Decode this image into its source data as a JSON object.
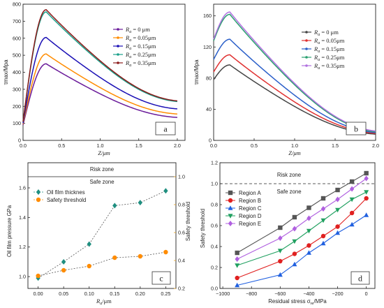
{
  "chart_data": [
    {
      "panel": "a",
      "type": "line",
      "xlabel": "Z/μm",
      "ylabel": "τmax/Mpa",
      "xlim": [
        0,
        2.1
      ],
      "ylim": [
        0,
        800
      ],
      "xticks": [
        "0.0",
        "0.5",
        "1.0",
        "1.5",
        "2.0"
      ],
      "yticks": [
        "0",
        "100",
        "200",
        "300",
        "400",
        "500",
        "600",
        "700",
        "800"
      ],
      "legend_position": "top-right",
      "panel_label": "a",
      "series": [
        {
          "name": "Ra = 0 μm",
          "color": "#6a1b9a",
          "peak_x": 0.3,
          "peak_y": 450,
          "y0": 90,
          "y_end": 135
        },
        {
          "name": "Ra = 0.05μm",
          "color": "#ff8c00",
          "peak_x": 0.3,
          "peak_y": 508,
          "y0": 95,
          "y_end": 155
        },
        {
          "name": "Ra = 0.15μm",
          "color": "#1a0fb5",
          "peak_x": 0.3,
          "peak_y": 605,
          "y0": 100,
          "y_end": 185
        },
        {
          "name": "Ra = 0.25μm",
          "color": "#1aa08a",
          "peak_x": 0.3,
          "peak_y": 755,
          "y0": 110,
          "y_end": 228
        },
        {
          "name": "Ra = 0.35μm",
          "color": "#8b1a1a",
          "peak_x": 0.3,
          "peak_y": 768,
          "y0": 110,
          "y_end": 232
        }
      ]
    },
    {
      "panel": "b",
      "type": "line",
      "xlabel": "Z/μm",
      "ylabel": "τmax/Mpa",
      "xlim": [
        0,
        2.0
      ],
      "ylim": [
        0,
        175
      ],
      "xticks": [
        "0.0",
        "0.5",
        "1.0",
        "1.5",
        "2.0"
      ],
      "yticks": [
        "0",
        "40",
        "80",
        "120",
        "160"
      ],
      "legend_position": "top-right",
      "panel_label": "b",
      "series": [
        {
          "name": "Ra = 0 μm",
          "color": "#444444",
          "peak_x": 0.2,
          "peak_y": 97,
          "y0": 78,
          "y_end": 8
        },
        {
          "name": "Ra = 0.05μm",
          "color": "#e03030",
          "peak_x": 0.2,
          "peak_y": 110,
          "y0": 88,
          "y_end": 9
        },
        {
          "name": "Ra = 0.15μm",
          "color": "#2a5fc9",
          "peak_x": 0.2,
          "peak_y": 130,
          "y0": 104,
          "y_end": 10
        },
        {
          "name": "Ra = 0.25μm",
          "color": "#2aa070",
          "peak_x": 0.2,
          "peak_y": 162,
          "y0": 128,
          "y_end": 11
        },
        {
          "name": "Ra = 0.35μm",
          "color": "#b070e0",
          "peak_x": 0.2,
          "peak_y": 165,
          "y0": 130,
          "y_end": 12
        }
      ]
    },
    {
      "panel": "c",
      "type": "line",
      "xlabel": "Ra/μm",
      "ylabel": "Oil film pressure GPa",
      "ylabel_right": "Safety threshold",
      "xlim": [
        -0.02,
        0.27
      ],
      "ylim": [
        0.92,
        1.77
      ],
      "ylim_right": [
        0.2,
        1.1
      ],
      "xticks": [
        "0.00",
        "0.05",
        "0.10",
        "0.15",
        "0.20",
        "0.25"
      ],
      "yticks": [
        "1.0",
        "1.2",
        "1.4",
        "1.6"
      ],
      "yticks_right": [
        "0.2",
        "0.4",
        "0.6",
        "0.8",
        "1.0"
      ],
      "zones": {
        "risk": "Risk zone",
        "safe": "Safe zone"
      },
      "legend_position": "top-left",
      "panel_label": "c",
      "x": [
        0.0,
        0.05,
        0.1,
        0.15,
        0.2,
        0.25
      ],
      "series": [
        {
          "name": "Oil film thicknes",
          "color": "#1f8f80",
          "marker": "diamond",
          "axis": "left",
          "values": [
            0.99,
            1.1,
            1.22,
            1.48,
            1.5,
            1.58
          ]
        },
        {
          "name": "Safety threshold",
          "color": "#ff8c00",
          "marker": "circle",
          "axis": "right",
          "values": [
            0.29,
            0.33,
            0.36,
            0.42,
            0.43,
            0.46
          ]
        }
      ]
    },
    {
      "panel": "d",
      "type": "line",
      "xlabel": "Residual stress σ_re/MPa",
      "ylabel": "Safety threshold",
      "xlim": [
        -1020,
        60
      ],
      "ylim": [
        0,
        1.2
      ],
      "xticks": [
        "-1000",
        "-800",
        "-600",
        "-400",
        "-200",
        "0"
      ],
      "yticks": [
        "0.0",
        "0.2",
        "0.4",
        "0.6",
        "0.8",
        "1.0",
        "1.2"
      ],
      "zones": {
        "risk": "Risk zone",
        "safe": "Safe zone"
      },
      "legend_position": "top-left",
      "panel_label": "d",
      "x": [
        -900,
        -600,
        -500,
        -400,
        -300,
        -200,
        -100,
        0
      ],
      "series": [
        {
          "name": "Region A",
          "color": "#555555",
          "marker": "square",
          "values": [
            0.34,
            0.58,
            0.68,
            0.77,
            0.86,
            0.94,
            1.02,
            1.1
          ]
        },
        {
          "name": "Region B",
          "color": "#e02020",
          "marker": "circle",
          "values": [
            0.1,
            0.26,
            0.33,
            0.41,
            0.5,
            0.59,
            0.72,
            0.86
          ]
        },
        {
          "name": "Region C",
          "color": "#2060e0",
          "marker": "triangle-up",
          "values": [
            0.03,
            0.13,
            0.23,
            0.34,
            0.43,
            0.53,
            0.61,
            0.7
          ]
        },
        {
          "name": "Region D",
          "color": "#20a060",
          "marker": "triangle-down",
          "values": [
            0.22,
            0.36,
            0.45,
            0.55,
            0.65,
            0.75,
            0.85,
            0.92
          ]
        },
        {
          "name": "Region E",
          "color": "#b060e0",
          "marker": "diamond",
          "values": [
            0.28,
            0.48,
            0.57,
            0.67,
            0.76,
            0.85,
            0.95,
            1.05
          ]
        }
      ]
    }
  ]
}
